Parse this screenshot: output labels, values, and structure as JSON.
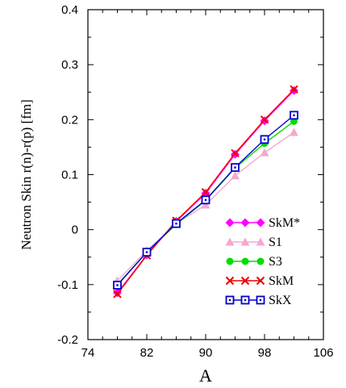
{
  "chart_data": {
    "type": "line",
    "xlabel": "A",
    "ylabel": "Neutron Skin  r(n)-r(p) [fm]",
    "xlim": [
      74,
      106
    ],
    "ylim": [
      -0.2,
      0.4
    ],
    "x_ticks": [
      "74",
      "82",
      "90",
      "98",
      "106"
    ],
    "y_ticks": [
      "-0.2",
      "-0.1",
      "0",
      "0.1",
      "0.2",
      "0.3",
      "0.4"
    ],
    "grid": false,
    "legend_position": "bottom-right",
    "x": [
      78,
      82,
      86,
      90,
      94,
      98,
      102
    ],
    "series": [
      {
        "name": "SkM*",
        "color": "#ff00ff",
        "marker": "diamond",
        "values": [
          -0.115,
          -0.046,
          0.015,
          0.066,
          0.137,
          0.198,
          0.253
        ]
      },
      {
        "name": "S1",
        "color": "#f4a8d0",
        "marker": "triangle",
        "values": [
          -0.093,
          -0.038,
          0.011,
          0.045,
          0.098,
          0.14,
          0.177
        ]
      },
      {
        "name": "S3",
        "color": "#00dd00",
        "marker": "circle",
        "values": [
          -0.1,
          -0.041,
          0.01,
          0.053,
          0.112,
          0.157,
          0.197
        ]
      },
      {
        "name": "SkM",
        "color": "#ee0000",
        "marker": "x",
        "values": [
          -0.117,
          -0.047,
          0.016,
          0.068,
          0.139,
          0.2,
          0.255
        ]
      },
      {
        "name": "SkX",
        "color": "#0000cc",
        "marker": "square",
        "values": [
          -0.101,
          -0.041,
          0.011,
          0.054,
          0.113,
          0.164,
          0.208
        ]
      }
    ]
  }
}
